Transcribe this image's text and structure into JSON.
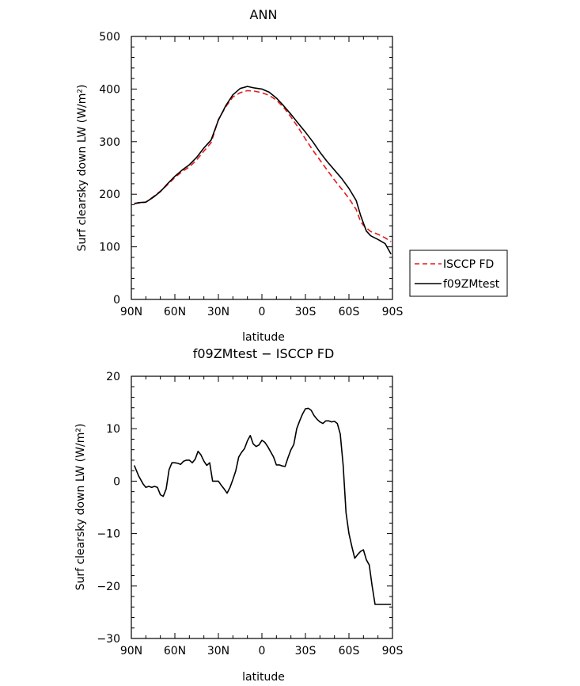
{
  "chart_data": [
    {
      "type": "line",
      "title": "ANN",
      "xlabel": "latitude",
      "ylabel": "Surf clearsky down LW (W/m²)",
      "xlim": [
        90,
        -90
      ],
      "ylim": [
        0,
        500
      ],
      "xticks": [
        90,
        60,
        30,
        0,
        -30,
        -60,
        -90
      ],
      "xtick_labels": [
        "90N",
        "60N",
        "30N",
        "0",
        "30S",
        "60S",
        "90S"
      ],
      "yticks": [
        0,
        100,
        200,
        300,
        400,
        500
      ],
      "ytick_labels": [
        "0",
        "100",
        "200",
        "300",
        "400",
        "500"
      ],
      "legend_position": "right",
      "series": [
        {
          "name": "ISCCP FD",
          "color": "#e41a1c",
          "dash": "dashed",
          "x": [
            88,
            85,
            80,
            75,
            70,
            65,
            60,
            55,
            50,
            45,
            40,
            35,
            30,
            25,
            20,
            15,
            10,
            5,
            0,
            -5,
            -10,
            -15,
            -20,
            -25,
            -30,
            -35,
            -40,
            -45,
            -50,
            -55,
            -60,
            -65,
            -68,
            -70,
            -75,
            -80,
            -85,
            -89
          ],
          "y": [
            183,
            183,
            185,
            195,
            206,
            218,
            232,
            243,
            252,
            265,
            282,
            298,
            342,
            366,
            385,
            393,
            397,
            396,
            393,
            388,
            379,
            365,
            347,
            327,
            305,
            284,
            265,
            246,
            227,
            210,
            192,
            171,
            148,
            141,
            129,
            124,
            117,
            110
          ]
        },
        {
          "name": "f09ZMtest",
          "color": "#000000",
          "dash": "solid",
          "x": [
            88,
            85,
            80,
            75,
            70,
            65,
            60,
            55,
            50,
            45,
            40,
            35,
            30,
            25,
            20,
            15,
            10,
            5,
            0,
            -5,
            -10,
            -15,
            -20,
            -25,
            -30,
            -35,
            -40,
            -45,
            -50,
            -55,
            -60,
            -65,
            -68,
            -70,
            -72,
            -75,
            -80,
            -85,
            -89
          ],
          "y": [
            182,
            184,
            185,
            194,
            205,
            220,
            234,
            246,
            256,
            270,
            288,
            303,
            341,
            368,
            389,
            401,
            405,
            402,
            400,
            394,
            383,
            368,
            352,
            335,
            318,
            300,
            280,
            262,
            246,
            230,
            211,
            188,
            160,
            145,
            130,
            121,
            114,
            106,
            86
          ]
        }
      ]
    },
    {
      "type": "line",
      "title": "f09ZMtest − ISCCP FD",
      "xlabel": "latitude",
      "ylabel": "Surf clearsky down LW (W/m²)",
      "xlim": [
        90,
        -90
      ],
      "ylim": [
        -30,
        20
      ],
      "xticks": [
        90,
        60,
        30,
        0,
        -30,
        -60,
        -90
      ],
      "xtick_labels": [
        "90N",
        "60N",
        "30N",
        "0",
        "30S",
        "60S",
        "90S"
      ],
      "yticks": [
        -30,
        -20,
        -10,
        0,
        10,
        20
      ],
      "ytick_labels": [
        "−30",
        "−20",
        "−10",
        "0",
        "10",
        "20"
      ],
      "series": [
        {
          "color": "#000000",
          "dash": "solid",
          "x": [
            88,
            85,
            82,
            80,
            78,
            76,
            74,
            72,
            70,
            68,
            66,
            64,
            62,
            60,
            58,
            56,
            54,
            52,
            50,
            48,
            46,
            44,
            42,
            40,
            38,
            36,
            34,
            32,
            30,
            28,
            26,
            24,
            22,
            20,
            18,
            16,
            14,
            12,
            10,
            8,
            6,
            4,
            2,
            0,
            -2,
            -4,
            -6,
            -8,
            -10,
            -12,
            -14,
            -16,
            -18,
            -20,
            -22,
            -24,
            -26,
            -28,
            -30,
            -32,
            -34,
            -36,
            -38,
            -40,
            -42,
            -44,
            -46,
            -48,
            -50,
            -52,
            -54,
            -56,
            -58,
            -60,
            -62,
            -64,
            -66,
            -68,
            -70,
            -72,
            -74,
            -76,
            -78,
            -80,
            -82,
            -84,
            -86,
            -88,
            -89
          ],
          "y": [
            3.0,
            1.0,
            -0.5,
            -1.2,
            -1.0,
            -1.2,
            -1.0,
            -1.2,
            -2.6,
            -2.9,
            -1.5,
            2.2,
            3.5,
            3.5,
            3.4,
            3.2,
            3.8,
            4.0,
            4.0,
            3.5,
            4.2,
            5.7,
            5.0,
            3.8,
            3.0,
            3.5,
            0.0,
            0.0,
            0.0,
            -0.8,
            -1.5,
            -2.3,
            -1.2,
            0.3,
            2.0,
            4.6,
            5.5,
            6.2,
            7.7,
            8.7,
            7.1,
            6.6,
            6.9,
            7.8,
            7.4,
            6.6,
            5.6,
            4.6,
            3.1,
            3.1,
            2.9,
            2.8,
            4.5,
            6.0,
            7.0,
            10.0,
            11.5,
            12.8,
            13.8,
            13.9,
            13.5,
            12.5,
            11.8,
            11.3,
            11.0,
            11.5,
            11.5,
            11.3,
            11.4,
            11.0,
            9.0,
            3.0,
            -6.0,
            -10.0,
            -12.5,
            -14.7,
            -14.0,
            -13.4,
            -13.1,
            -15.0,
            -16.0,
            -20.0,
            -23.5,
            -23.5,
            -23.5,
            -23.5,
            -23.5,
            -23.5,
            -23.5
          ]
        }
      ]
    }
  ]
}
